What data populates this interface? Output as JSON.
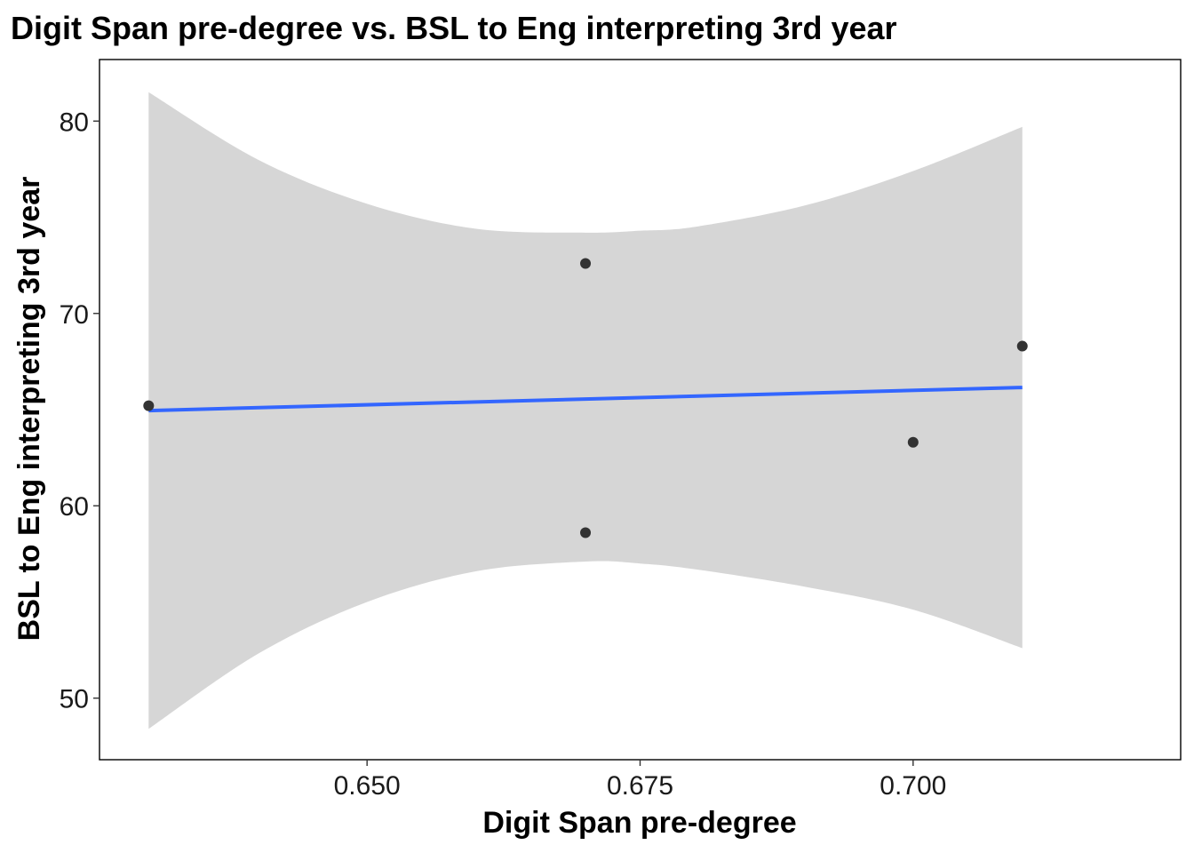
{
  "chart_data": {
    "type": "scatter",
    "title": "Digit Span pre-degree vs. BSL to Eng interpreting 3rd year",
    "xlabel": "Digit Span pre-degree",
    "ylabel": "BSL to Eng interpreting 3rd year",
    "xlim": [
      0.6255,
      0.7245
    ],
    "ylim": [
      46.8,
      83.2
    ],
    "x_ticks": [
      0.65,
      0.675,
      0.7
    ],
    "x_tick_labels": [
      "0.650",
      "0.675",
      "0.700"
    ],
    "y_ticks": [
      50,
      60,
      70,
      80
    ],
    "y_tick_labels": [
      "50",
      "60",
      "70",
      "80"
    ],
    "grid": false,
    "points": [
      {
        "x": 0.63,
        "y": 65.2
      },
      {
        "x": 0.67,
        "y": 72.6
      },
      {
        "x": 0.67,
        "y": 58.6
      },
      {
        "x": 0.7,
        "y": 63.3
      },
      {
        "x": 0.71,
        "y": 68.3
      }
    ],
    "regression": {
      "x": [
        0.63,
        0.71
      ],
      "y": [
        64.95,
        66.15
      ],
      "color": "#3366ff"
    },
    "confidence_band": {
      "color": "#d6d6d6",
      "x": [
        0.63,
        0.64,
        0.65,
        0.66,
        0.67,
        0.675,
        0.68,
        0.69,
        0.7,
        0.71
      ],
      "upper": [
        81.5,
        78.0,
        75.7,
        74.4,
        74.2,
        74.3,
        74.5,
        75.6,
        77.4,
        79.7
      ],
      "lower": [
        48.4,
        52.3,
        55.0,
        56.6,
        57.1,
        57.0,
        56.7,
        55.8,
        54.6,
        52.6
      ]
    },
    "point_color": "#333333"
  }
}
